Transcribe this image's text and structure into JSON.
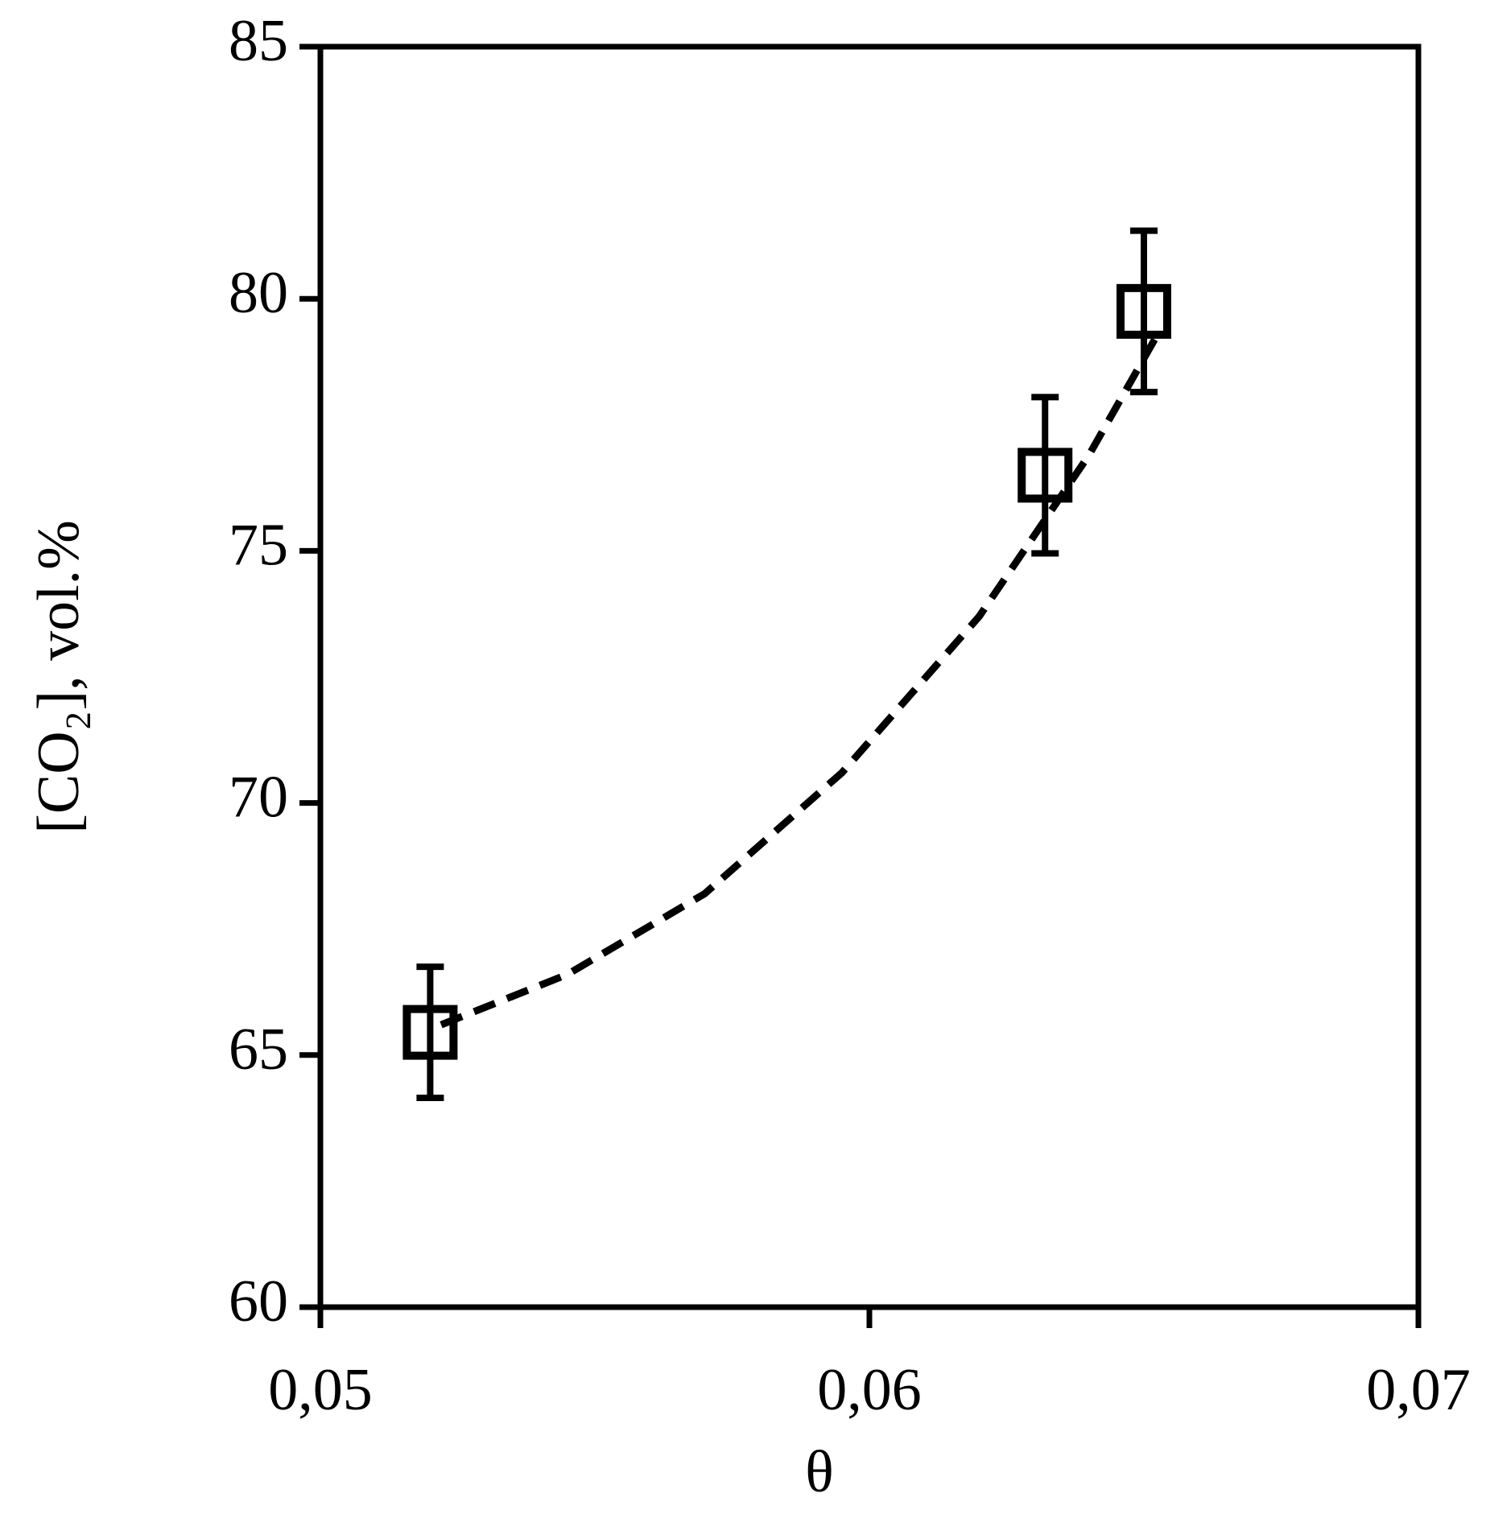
{
  "chart_data": {
    "type": "scatter",
    "x_label": "θ",
    "y_label": "[CO₂], vol.%",
    "xlim": [
      0.05,
      0.07
    ],
    "xticks": [
      {
        "value": 0.05,
        "label": "0,05"
      },
      {
        "value": 0.06,
        "label": "0,06"
      },
      {
        "value": 0.07,
        "label": "0,07"
      }
    ],
    "ylim": [
      60,
      85
    ],
    "yticks": [
      60,
      65,
      70,
      75,
      80,
      85
    ],
    "color": "#000000",
    "points": {
      "x": [
        0.052,
        0.0632,
        0.065
      ],
      "values": [
        65.45,
        76.5,
        79.75
      ],
      "errors": [
        1.3,
        1.55,
        1.6
      ]
    },
    "fit": {
      "x": [
        0.0522,
        0.0545,
        0.057,
        0.0595,
        0.062,
        0.064,
        0.0652
      ],
      "values": [
        65.6,
        66.6,
        68.2,
        70.6,
        73.7,
        76.9,
        79.2
      ]
    }
  }
}
